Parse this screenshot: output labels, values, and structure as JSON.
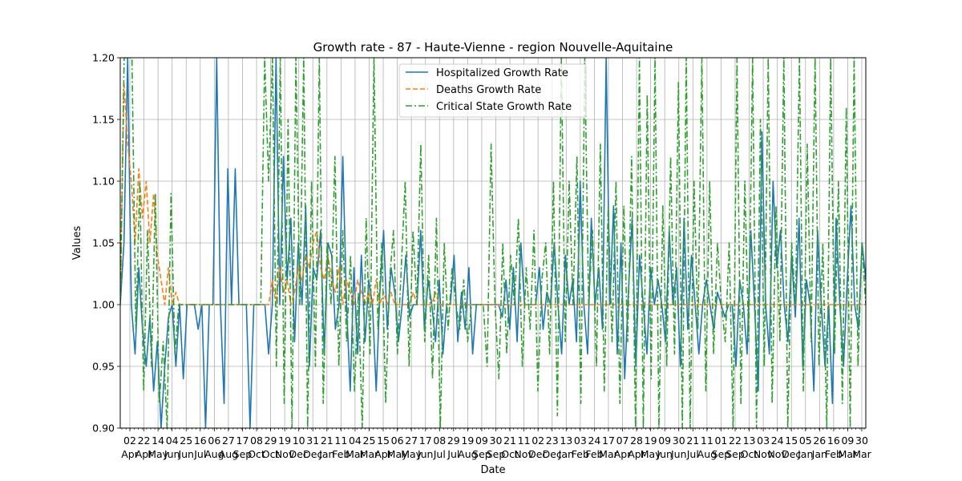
{
  "chart_data": {
    "type": "line",
    "title": "Growth rate - 87 - Haute-Vienne - region Nouvelle-Aquitaine",
    "xlabel": "Date",
    "ylabel": "Values",
    "ylim": [
      0.9,
      1.2
    ],
    "yticks": [
      "0.90",
      "0.95",
      "1.00",
      "1.05",
      "1.10",
      "1.15",
      "1.20"
    ],
    "grid": true,
    "legend_position": "top-center",
    "x_tick_days": [
      "02",
      "22",
      "14",
      "04",
      "25",
      "16",
      "06",
      "27",
      "17",
      "08",
      "29",
      "19",
      "10",
      "31",
      "21",
      "11",
      "04",
      "25",
      "15",
      "06",
      "27",
      "17",
      "08",
      "29",
      "19",
      "09",
      "30",
      "21",
      "11",
      "02",
      "23",
      "13",
      "03",
      "24",
      "17",
      "07",
      "28",
      "19",
      "09",
      "30",
      "21",
      "11",
      "01",
      "22",
      "13",
      "03",
      "24",
      "15",
      "05",
      "26",
      "16",
      "09",
      "30"
    ],
    "x_tick_months": [
      "Apr",
      "Apr",
      "May",
      "Jun",
      "Jun",
      "Jul",
      "Aug",
      "Aug",
      "Sep",
      "Oct",
      "Oct",
      "Nov",
      "Dec",
      "Dec",
      "Jan",
      "Feb",
      "Mar",
      "Mar",
      "Apr",
      "May",
      "May",
      "Jun",
      "Jul",
      "Jul",
      "Aug",
      "Sep",
      "Sep",
      "Oct",
      "Nov",
      "Dec",
      "Dec",
      "Jan",
      "Feb",
      "Feb",
      "Mar",
      "Apr",
      "Apr",
      "May",
      "Jun",
      "Jun",
      "Jul",
      "Aug",
      "Sep",
      "Sep",
      "Oct",
      "Nov",
      "Nov",
      "Dec",
      "Jan",
      "Jan",
      "Feb",
      "Mar",
      "Mar"
    ],
    "series": [
      {
        "name": "Hospitalized Growth Rate",
        "color": "#1f77b4",
        "style": "solid",
        "values": [
          1.0,
          1.05,
          1.2,
          1.0,
          0.96,
          1.03,
          0.98,
          0.95,
          0.99,
          0.93,
          0.97,
          0.9,
          0.95,
          0.99,
          1.0,
          0.95,
          1.0,
          0.94,
          1.0,
          1.0,
          1.0,
          0.98,
          1.0,
          0.9,
          1.0,
          1.0,
          1.2,
          1.0,
          0.92,
          1.11,
          1.0,
          1.11,
          1.0,
          1.0,
          1.0,
          0.9,
          1.0,
          1.0,
          1.0,
          1.0,
          0.96,
          1.0,
          1.2,
          1.0,
          1.12,
          1.02,
          1.07,
          0.97,
          1.05,
          1.0,
          1.08,
          0.95,
          1.03,
          1.02,
          1.06,
          0.96,
          1.05,
          1.04,
          0.98,
          1.0,
          1.12,
          1.0,
          0.93,
          1.03,
          0.96,
          1.04,
          0.97,
          1.02,
          1.0,
          0.93,
          1.01,
          1.06,
          0.98,
          1.03,
          1.01,
          0.97,
          1.0,
          1.04,
          0.99,
          1.0,
          1.0,
          1.06,
          0.98,
          1.02,
          1.0,
          0.97,
          1.02,
          0.96,
          1.0,
          1.0,
          1.04,
          0.97,
          1.01,
          0.98,
          1.03,
          0.96,
          1.0,
          1.0,
          1.0,
          1.0,
          1.0,
          1.0,
          1.0,
          0.99,
          1.02,
          0.98,
          1.03,
          0.97,
          1.05,
          1.0,
          1.0,
          1.0,
          1.0,
          1.03,
          0.98,
          1.01,
          1.0,
          1.05,
          1.0,
          0.96,
          1.04,
          1.0,
          1.02,
          0.97,
          1.1,
          1.0,
          0.96,
          1.07,
          1.0,
          1.03,
          0.98,
          1.2,
          1.0,
          1.08,
          0.96,
          1.05,
          0.94,
          1.01,
          1.07,
          0.95,
          1.04,
          1.0,
          0.96,
          1.03,
          1.0,
          1.02,
          1.0,
          0.97,
          1.06,
          1.0,
          1.03,
          0.95,
          1.07,
          0.98,
          1.04,
          1.0,
          0.96,
          1.0,
          1.02,
          1.0,
          0.98,
          1.01,
          1.0,
          0.99,
          1.0,
          1.0,
          0.95,
          1.02,
          1.0,
          0.96,
          1.06,
          1.0,
          0.93,
          1.14,
          1.0,
          0.96,
          1.1,
          1.03,
          1.06,
          1.0,
          0.97,
          1.04,
          0.99,
          1.07,
          0.95,
          1.02,
          1.0,
          0.93,
          1.06,
          1.0,
          0.95,
          1.0,
          0.92,
          1.07,
          1.0,
          0.95,
          1.02,
          1.08,
          1.0,
          0.98,
          1.05,
          1.02
        ]
      },
      {
        "name": "Deaths Growth Rate",
        "color": "#ff7f0e",
        "style": "dashed",
        "values": [
          1.0,
          1.18,
          1.13,
          1.1,
          1.05,
          1.11,
          1.07,
          1.1,
          1.05,
          1.09,
          1.04,
          1.02,
          1.0,
          1.03,
          1.0,
          1.01,
          1.0,
          1.0,
          1.0,
          1.0,
          1.0,
          1.0,
          1.0,
          1.0,
          1.0,
          1.0,
          1.0,
          1.0,
          1.0,
          1.0,
          1.0,
          1.0,
          1.0,
          1.0,
          1.0,
          1.0,
          1.0,
          1.0,
          1.0,
          1.0,
          1.0,
          1.02,
          1.0,
          1.03,
          1.01,
          1.02,
          1.0,
          1.01,
          1.03,
          1.02,
          1.04,
          1.03,
          1.05,
          1.06,
          1.03,
          1.02,
          1.04,
          1.02,
          1.01,
          1.03,
          1.0,
          1.02,
          1.01,
          1.0,
          1.02,
          1.01,
          1.0,
          1.01,
          1.0,
          1.02,
          1.0,
          1.01,
          1.0,
          1.01,
          1.0,
          1.0,
          1.0,
          1.0,
          1.0,
          1.01,
          1.0,
          1.0,
          1.0,
          1.0,
          1.0,
          1.01,
          1.0,
          1.0,
          1.0,
          1.0,
          1.0,
          1.0,
          1.0,
          1.0,
          1.0,
          1.0,
          1.0,
          1.0,
          1.0,
          1.0,
          1.0,
          1.0,
          1.0,
          1.0,
          1.0,
          1.0,
          1.0,
          1.0,
          1.0,
          1.0,
          1.0,
          1.0,
          1.0,
          1.0,
          1.0,
          1.0,
          1.0,
          1.0,
          1.0,
          1.0,
          1.0,
          1.0,
          1.0,
          1.0,
          1.0,
          1.0,
          1.0,
          1.0,
          1.0,
          1.0,
          1.0,
          1.0,
          1.0,
          1.0,
          1.0,
          1.0,
          1.0,
          1.0,
          1.0,
          1.0,
          1.0,
          1.0,
          1.0,
          1.0,
          1.0,
          1.0,
          1.0,
          1.0,
          1.0,
          1.0,
          1.0,
          1.0,
          1.0,
          1.0,
          1.0,
          1.0,
          1.0,
          1.0,
          1.0,
          1.0,
          1.0,
          1.0,
          1.0,
          1.0,
          1.0,
          1.0,
          1.0,
          1.0,
          1.0,
          1.0,
          1.0,
          1.0,
          1.0,
          1.0,
          1.0,
          1.0,
          1.0,
          1.0,
          1.0,
          1.0,
          1.0,
          1.0,
          1.0,
          1.0,
          1.0,
          1.0,
          1.0,
          1.0,
          1.0,
          1.0,
          1.0,
          1.0,
          1.0,
          1.0,
          1.0,
          1.0,
          1.0,
          1.0,
          1.0,
          1.0,
          1.0,
          1.0
        ]
      },
      {
        "name": "Critical State Growth Rate",
        "color": "#2ca02c",
        "style": "dashdot",
        "values": [
          1.0,
          1.2,
          1.2,
          1.2,
          0.98,
          1.1,
          0.93,
          1.06,
          0.95,
          1.09,
          0.92,
          0.97,
          0.9,
          1.09,
          0.96,
          1.0,
          1.0,
          1.0,
          1.0,
          1.0,
          1.0,
          1.0,
          1.0,
          1.0,
          1.0,
          1.0,
          1.0,
          1.0,
          1.0,
          1.0,
          1.0,
          1.0,
          1.0,
          1.0,
          1.0,
          1.0,
          1.0,
          1.2,
          1.1,
          1.2,
          0.95,
          1.2,
          0.92,
          1.15,
          0.9,
          1.2,
          1.0,
          1.2,
          0.9,
          1.1,
          0.95,
          1.2,
          0.92,
          1.05,
          1.0,
          1.12,
          0.95,
          1.06,
          0.97,
          1.04,
          0.93,
          1.01,
          0.9,
          1.07,
          0.96,
          1.2,
          0.98,
          1.05,
          0.92,
          1.02,
          1.06,
          0.96,
          1.03,
          1.1,
          0.95,
          1.06,
          1.0,
          1.13,
          0.97,
          1.04,
          0.94,
          1.07,
          0.9,
          1.05,
          0.98,
          1.03,
          1.0,
          0.98,
          1.02,
          0.97,
          1.0,
          1.0,
          1.0,
          1.0,
          0.95,
          1.13,
          1.0,
          0.94,
          1.05,
          0.96,
          1.04,
          1.0,
          1.07,
          0.95,
          1.03,
          0.98,
          1.06,
          0.93,
          1.02,
          1.05,
          0.96,
          1.1,
          0.91,
          1.2,
          0.97,
          1.1,
          1.0,
          1.12,
          0.92,
          1.2,
          1.0,
          1.06,
          0.95,
          1.13,
          0.93,
          1.08,
          0.97,
          1.1,
          0.92,
          1.08,
          0.97,
          1.12,
          0.9,
          1.2,
          0.9,
          1.17,
          0.94,
          1.2,
          0.9,
          1.08,
          0.95,
          1.12,
          0.96,
          1.18,
          0.9,
          1.2,
          0.9,
          1.1,
          0.98,
          1.2,
          0.93,
          1.1,
          0.96,
          1.05,
          1.0,
          0.97,
          1.05,
          0.9,
          1.2,
          0.92,
          1.1,
          0.97,
          1.2,
          0.9,
          1.15,
          0.95,
          1.2,
          0.92,
          1.08,
          0.97,
          1.2,
          0.9,
          1.05,
          1.0,
          1.2,
          0.93,
          1.13,
          0.97,
          1.2,
          0.95,
          1.05,
          0.9,
          1.2,
          0.96,
          1.1,
          0.92,
          1.16,
          0.9,
          1.2,
          0.95,
          1.05,
          1.0
        ]
      }
    ]
  }
}
